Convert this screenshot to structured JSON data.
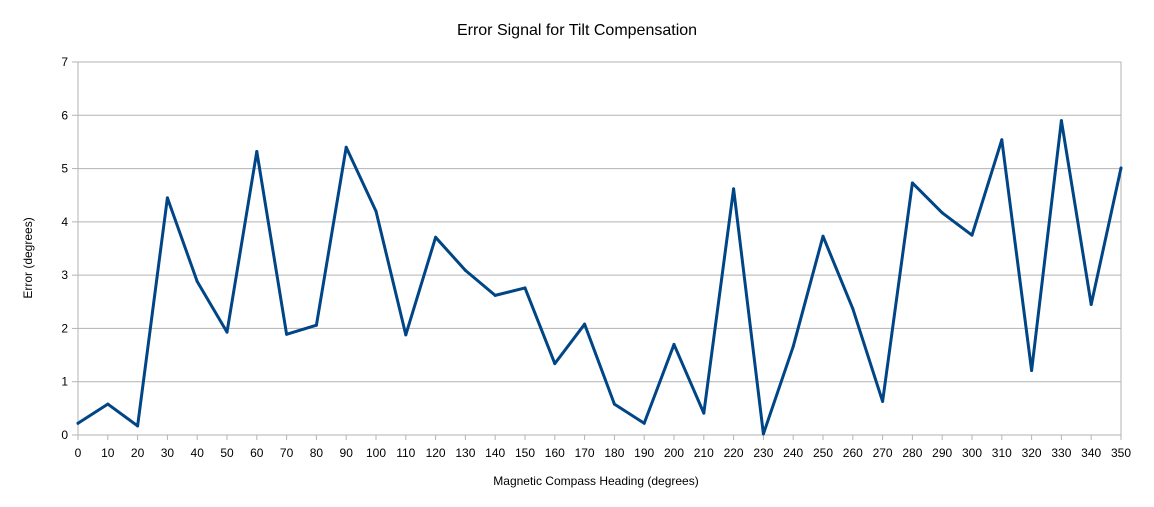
{
  "chart_data": {
    "type": "line",
    "title": "Error Signal for Tilt Compensation",
    "xlabel": "Magnetic Compass Heading (degrees)",
    "ylabel": "Error (degrees)",
    "xlim": [
      0,
      350
    ],
    "ylim": [
      0,
      7
    ],
    "y_ticks": [
      0,
      1,
      2,
      3,
      4,
      5,
      6,
      7
    ],
    "grid": true,
    "legend": "none",
    "color": "#004586",
    "x": [
      0,
      10,
      20,
      30,
      40,
      50,
      60,
      70,
      80,
      90,
      100,
      110,
      120,
      130,
      140,
      150,
      160,
      170,
      180,
      190,
      200,
      210,
      220,
      230,
      240,
      250,
      260,
      270,
      280,
      290,
      300,
      310,
      320,
      330,
      340,
      350
    ],
    "series": [
      {
        "values": [
          0.22,
          0.58,
          0.17,
          4.45,
          2.88,
          1.93,
          5.32,
          1.89,
          2.06,
          5.4,
          4.2,
          1.88,
          3.71,
          3.09,
          2.62,
          2.76,
          1.34,
          2.08,
          0.58,
          0.22,
          1.7,
          0.41,
          4.62,
          0.02,
          1.66,
          3.73,
          2.37,
          0.63,
          4.73,
          4.17,
          3.75,
          5.54,
          1.21,
          5.9,
          2.45,
          5.01
        ]
      }
    ]
  }
}
